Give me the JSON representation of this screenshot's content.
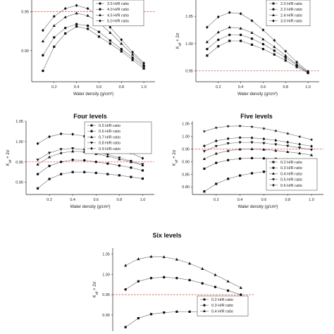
{
  "chart_data": [
    {
      "type": "line",
      "title": "",
      "xlabel": "Water density (g/cm³)",
      "ylabel": "",
      "xlim": [
        0,
        1.1
      ],
      "ylim": [
        0.86,
        0.965
      ],
      "xticks": [
        "0.2",
        "0.4",
        "0.6",
        "0.8",
        "1.0"
      ],
      "yticks": [
        "0.90",
        "0.95"
      ],
      "reference_line": 0.95,
      "legend_loc": "top-right",
      "x": [
        0.1,
        0.2,
        0.3,
        0.4,
        0.5,
        0.6,
        0.7,
        0.8,
        0.9,
        1.0
      ],
      "series": [
        {
          "name": "3.5 H/R ratio",
          "marker": "square",
          "values": [
            0.874,
            0.905,
            0.922,
            0.931,
            0.928,
            0.918,
            0.909,
            0.899,
            0.888,
            0.877
          ]
        },
        {
          "name": "4.0 H/R ratio",
          "marker": "circle",
          "values": [
            0.894,
            0.917,
            0.929,
            0.934,
            0.932,
            0.924,
            0.913,
            0.902,
            0.891,
            0.88
          ]
        },
        {
          "name": "4.5 H/R ratio",
          "marker": "triangle",
          "values": [
            0.912,
            0.932,
            0.943,
            0.948,
            0.945,
            0.936,
            0.923,
            0.909,
            0.895,
            0.882
          ]
        },
        {
          "name": "5.0 H/R ratio",
          "marker": "diamond",
          "values": [
            0.926,
            0.944,
            0.954,
            0.958,
            0.954,
            0.944,
            0.93,
            0.914,
            0.898,
            0.884
          ]
        }
      ]
    },
    {
      "type": "line",
      "title": "",
      "xlabel": "Water density (g/cm³)",
      "ylabel": "K",
      "xlim": [
        0,
        1.1
      ],
      "ylim": [
        0.93,
        1.08
      ],
      "xticks": [
        "0.2",
        "0.4",
        "0.6",
        "0.8",
        "1.0"
      ],
      "yticks": [
        "0.95",
        "1.00",
        "1.05"
      ],
      "reference_line": 0.95,
      "legend_loc": "top-right",
      "x": [
        0.1,
        0.2,
        0.3,
        0.4,
        0.5,
        0.6,
        0.7,
        0.8,
        0.9,
        1.0
      ],
      "series": [
        {
          "name": "2.0 H/R ratio",
          "marker": "square",
          "values": [
            0.978,
            0.995,
            1.005,
            1.005,
            0.998,
            0.99,
            0.98,
            0.969,
            0.957,
            0.946
          ]
        },
        {
          "name": "2.2 H/R ratio",
          "marker": "circle",
          "values": [
            0.99,
            1.007,
            1.016,
            1.016,
            1.009,
            0.999,
            0.987,
            0.974,
            0.96,
            0.947
          ]
        },
        {
          "name": "2.4 H/R ratio",
          "marker": "triangle",
          "values": [
            1.003,
            1.021,
            1.03,
            1.028,
            1.02,
            1.008,
            0.994,
            0.978,
            0.962,
            0.948
          ]
        },
        {
          "name": "3.0 H/R ratio",
          "marker": "diamond",
          "values": [
            1.03,
            1.049,
            1.057,
            1.055,
            1.042,
            1.025,
            1.006,
            0.986,
            0.966,
            0.949
          ]
        }
      ]
    },
    {
      "type": "line",
      "title": "Four levels",
      "xlabel": "Water density (g/cm³)",
      "ylabel": "K",
      "xlim": [
        0,
        1.1
      ],
      "ylim": [
        0.87,
        1.05
      ],
      "xticks": [
        "0.2",
        "0.4",
        "0.6",
        "0.8",
        "1.0"
      ],
      "yticks": [
        "0.90",
        "0.95",
        "1.00",
        "1.05"
      ],
      "reference_line": 0.95,
      "legend_loc": "top-right",
      "x": [
        0.1,
        0.2,
        0.3,
        0.4,
        0.5,
        0.6,
        0.7,
        0.8,
        0.9,
        1.0
      ],
      "series": [
        {
          "name": "0.5 H/R ratio",
          "marker": "square",
          "values": [
            0.885,
            0.908,
            0.92,
            0.925,
            0.925,
            0.923,
            0.92,
            0.917,
            0.913,
            0.909
          ]
        },
        {
          "name": "0.6 H/R ratio",
          "marker": "circle",
          "values": [
            0.92,
            0.94,
            0.95,
            0.955,
            0.954,
            0.95,
            0.946,
            0.941,
            0.936,
            0.929
          ]
        },
        {
          "name": "0.7 H/R ratio",
          "marker": "triangle",
          "values": [
            0.944,
            0.962,
            0.972,
            0.976,
            0.975,
            0.97,
            0.964,
            0.957,
            0.95,
            0.942
          ]
        },
        {
          "name": "0.8 H/R ratio",
          "marker": "triangle-down",
          "values": [
            0.955,
            0.972,
            0.981,
            0.983,
            0.98,
            0.974,
            0.968,
            0.96,
            0.952,
            0.944
          ]
        },
        {
          "name": "0.9 H/R ratio",
          "marker": "diamond",
          "values": [
            0.995,
            1.012,
            1.019,
            1.018,
            1.013,
            1.005,
            0.995,
            0.984,
            0.972,
            0.959
          ]
        }
      ]
    },
    {
      "type": "line",
      "title": "Five levels",
      "xlabel": "Water density (g/cm³)",
      "ylabel": "K",
      "xlim": [
        0,
        1.1
      ],
      "ylim": [
        0.77,
        1.06
      ],
      "xticks": [
        "0.2",
        "0.4",
        "0.6",
        "0.8",
        "1.0"
      ],
      "yticks": [
        "0.80",
        "0.85",
        "0.90",
        "0.95",
        "1.00",
        "1.05"
      ],
      "reference_line": 0.95,
      "legend_loc": "bottom-right",
      "x": [
        0.1,
        0.2,
        0.3,
        0.4,
        0.5,
        0.6,
        0.7,
        0.8,
        0.9,
        1.0
      ],
      "series": [
        {
          "name": "0.2 H/R ratio",
          "marker": "square",
          "values": [
            0.782,
            0.812,
            0.832,
            0.845,
            0.854,
            0.86,
            0.864,
            0.866,
            0.867,
            0.868
          ]
        },
        {
          "name": "0.3 H/R ratio",
          "marker": "circle",
          "values": [
            0.872,
            0.895,
            0.906,
            0.912,
            0.914,
            0.913,
            0.911,
            0.908,
            0.905,
            0.901
          ]
        },
        {
          "name": "0.4 H/R ratio",
          "marker": "triangle",
          "values": [
            0.911,
            0.932,
            0.943,
            0.949,
            0.95,
            0.948,
            0.944,
            0.939,
            0.933,
            0.926
          ]
        },
        {
          "name": "0.5 H/R ratio",
          "marker": "triangle-down",
          "values": [
            0.941,
            0.961,
            0.972,
            0.976,
            0.976,
            0.973,
            0.968,
            0.962,
            0.955,
            0.947
          ]
        },
        {
          "name": "0.6 H/R ratio",
          "marker": "diamond",
          "values": [
            0.962,
            0.982,
            0.991,
            0.995,
            0.994,
            0.99,
            0.984,
            0.977,
            0.969,
            0.961
          ]
        },
        {
          "name": "",
          "marker": "star",
          "values": [
            1.02,
            1.034,
            1.04,
            1.041,
            1.038,
            1.031,
            1.022,
            1.011,
            0.999,
            0.987
          ]
        }
      ]
    },
    {
      "type": "line",
      "title": "Six levels",
      "xlabel": "",
      "ylabel": "K",
      "xlim": [
        0,
        1.1
      ],
      "ylim": [
        0.86,
        1.065
      ],
      "xticks": [],
      "yticks": [
        "0.90",
        "0.95",
        "1.00",
        "1.05"
      ],
      "reference_line": 0.95,
      "legend_loc": "bottom-right",
      "x": [
        0.1,
        0.2,
        0.3,
        0.4,
        0.5,
        0.6,
        0.7,
        0.8,
        0.9,
        1.0
      ],
      "series": [
        {
          "name": "0.2 H/R ratio",
          "marker": "square",
          "values": [
            0.87,
            0.892,
            0.902,
            0.906,
            0.908,
            0.908,
            0.907,
            0.905,
            0.903,
            0.9
          ]
        },
        {
          "name": "0.3 H/R ratio",
          "marker": "circle",
          "values": [
            0.963,
            0.983,
            0.991,
            0.993,
            0.991,
            0.986,
            0.978,
            0.969,
            0.96,
            0.95
          ]
        },
        {
          "name": "0.4 H/R ratio",
          "marker": "triangle",
          "values": [
            1.022,
            1.038,
            1.044,
            1.043,
            1.037,
            1.027,
            1.014,
            0.999,
            0.983,
            0.967
          ]
        }
      ]
    }
  ],
  "icons": [
    "square-marker",
    "circle-marker",
    "triangle-marker",
    "triangle-down-marker",
    "diamond-marker",
    "star-marker"
  ],
  "colors": {
    "series_line": "#6a6a6a",
    "marker": "#111111",
    "reference_line": "#e05555",
    "axis": "#222222"
  },
  "axis_sub": "eff",
  "axis_suffix": " + 2σ"
}
